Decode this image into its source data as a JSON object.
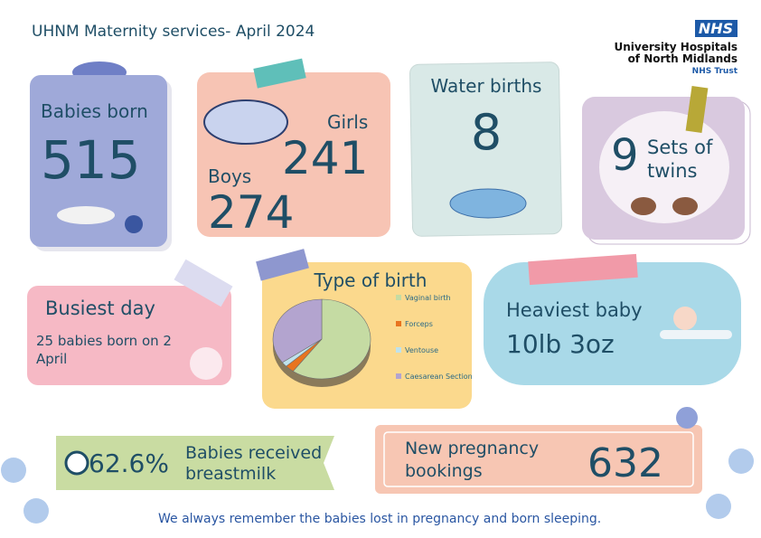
{
  "header": {
    "title": "UHNM Maternity services- April 2024",
    "logo": "NHS",
    "org_lines": [
      "University Hospitals",
      "of North Midlands"
    ],
    "trust": "NHS Trust"
  },
  "babies_born": {
    "label": "Babies born",
    "value": 515
  },
  "gender": {
    "girls_label": "Girls",
    "girls": 241,
    "boys_label": "Boys",
    "boys": 274
  },
  "water_births": {
    "label": "Water births",
    "value": 8
  },
  "twins": {
    "value": 9,
    "label_lines": [
      "Sets of",
      "twins"
    ]
  },
  "busiest_day": {
    "label": "Busiest day",
    "text_lines": [
      "25 babies born on 2",
      "April"
    ]
  },
  "chart_data": {
    "type": "pie",
    "title": "Type of birth",
    "categories": [
      "Vaginal birth",
      "Forceps",
      "Ventouse",
      "Caesarean Section"
    ],
    "values": [
      60,
      3,
      2,
      35
    ],
    "colors": [
      "#c5dba3",
      "#e8741f",
      "#bfe2ec",
      "#b3a4cf"
    ]
  },
  "heaviest_baby": {
    "label": "Heaviest baby",
    "value": "10lb 3oz"
  },
  "breastmilk": {
    "value": "62.6%",
    "label_lines": [
      "Babies received",
      "breastmilk"
    ]
  },
  "bookings": {
    "label_lines": [
      "New pregnancy",
      "bookings"
    ],
    "value": 632
  },
  "footer": "We always remember the babies lost in pregnancy and born sleeping."
}
